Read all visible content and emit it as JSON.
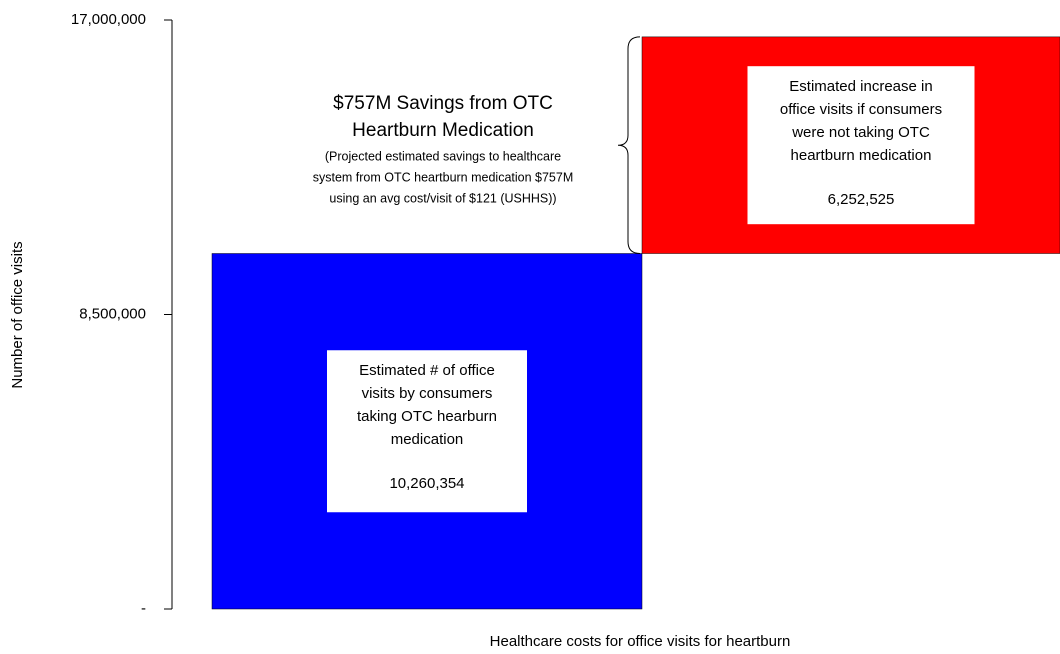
{
  "chart_data": {
    "type": "waterfall",
    "x_label": "Healthcare costs for office visits for heartburn",
    "y_label": "Number of office visits",
    "categories": [
      null,
      null
    ],
    "values": [
      10260354,
      6252525
    ],
    "value_labels": [
      "10,260,354",
      "6,252,525"
    ],
    "colors": [
      "#0000ff",
      "#ff0000"
    ],
    "bar_labels": [
      [
        "Estimated # of office",
        "visits by consumers",
        "taking OTC hearburn",
        "medication"
      ],
      [
        "Estimated increase in",
        "office visits if consumers",
        "were not taking OTC",
        "heartburn medication"
      ]
    ],
    "ylim": [
      0,
      17000000
    ],
    "yticks": [
      {
        "value": 0,
        "label": "-"
      },
      {
        "value": 8500000,
        "label": "8,500,000"
      },
      {
        "value": 17000000,
        "label": "17,000,000"
      }
    ],
    "annotation": {
      "title": [
        "$757M Savings from OTC",
        "Heartburn Medication"
      ],
      "text": [
        "(Projected estimated savings to healthcare",
        "system from OTC heartburn medication $757M",
        "using an avg cost/visit of $121 (USHHS))"
      ]
    }
  }
}
